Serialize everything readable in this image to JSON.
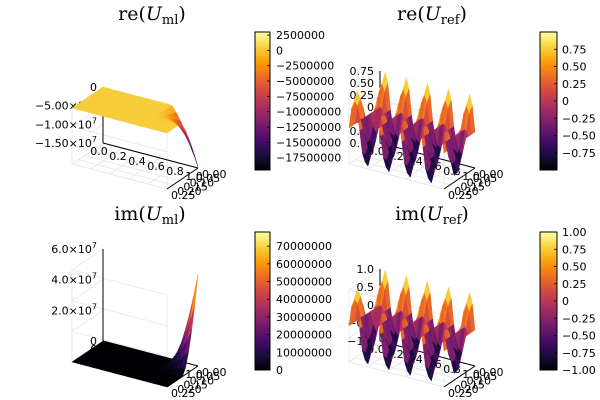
{
  "colors": {
    "colormap": "inferno",
    "stops": [
      "#000004",
      "#1b0c41",
      "#4a0c6b",
      "#781c6d",
      "#a52c60",
      "#cf4446",
      "#ed6925",
      "#fb9b06",
      "#f7d13d",
      "#fcffa4"
    ]
  },
  "chart_data": [
    {
      "type": "surface",
      "title_fn": "re",
      "title_sub": "ml",
      "x_ticks": [
        "0.0",
        "0.2",
        "0.4",
        "0.6",
        "0.8",
        "1.0"
      ],
      "y_ticks": [
        "0.00",
        "0.05",
        "0.10",
        "0.15",
        "0.20",
        "0.25"
      ],
      "z_ticks": [
        {
          "mant": "0",
          "exp": ""
        },
        {
          "mant": "−5.00×10",
          "exp": "6"
        },
        {
          "mant": "−1.00×10",
          "exp": "7"
        },
        {
          "mant": "−1.50×10",
          "exp": "7"
        }
      ],
      "colorbar_ticks": [
        "2500000",
        "0",
        "−2500000",
        "−5000000",
        "−7500000",
        "−10000000",
        "−12500000",
        "−15000000",
        "−17500000"
      ],
      "colorbar_range": [
        -19500000,
        3000000
      ],
      "shape": "plateau_dip"
    },
    {
      "type": "surface",
      "title_fn": "re",
      "title_sub": "ref",
      "x_ticks": [
        "0.0",
        "0.2",
        "0.4",
        "0.6",
        "0.8",
        "1.0"
      ],
      "y_ticks": [
        "0.00",
        "0.05",
        "0.10",
        "0.15",
        "0.20",
        "0.25"
      ],
      "z_ticks": [
        {
          "mant": "0.75",
          "exp": ""
        },
        {
          "mant": "0.50",
          "exp": ""
        },
        {
          "mant": "0.25",
          "exp": ""
        },
        {
          "mant": "0",
          "exp": ""
        },
        {
          "mant": "0.25",
          "exp": ""
        },
        {
          "mant": "0.50",
          "exp": ""
        },
        {
          "mant": "0.75",
          "exp": ""
        }
      ],
      "colorbar_ticks": [
        "0.75",
        "0.50",
        "0.25",
        "0",
        "−0.25",
        "−0.50",
        "−0.75"
      ],
      "colorbar_range": [
        -1.0,
        1.0
      ],
      "shape": "wave"
    },
    {
      "type": "surface",
      "title_fn": "im",
      "title_sub": "ml",
      "x_ticks": [
        "0.0",
        "0.2",
        "0.4",
        "0.6",
        "0.8",
        "1.0"
      ],
      "y_ticks": [
        "0.00",
        "0.05",
        "0.10",
        "0.15",
        "0.20",
        "0.25"
      ],
      "z_ticks": [
        {
          "mant": "6.0×10",
          "exp": "7"
        },
        {
          "mant": "4.0×10",
          "exp": "7"
        },
        {
          "mant": "2.0×10",
          "exp": "7"
        },
        {
          "mant": "0",
          "exp": ""
        }
      ],
      "colorbar_ticks": [
        "70000000",
        "60000000",
        "50000000",
        "40000000",
        "30000000",
        "20000000",
        "10000000",
        "0"
      ],
      "colorbar_range": [
        0,
        78000000
      ],
      "shape": "flat_spike"
    },
    {
      "type": "surface",
      "title_fn": "im",
      "title_sub": "ref",
      "x_ticks": [
        "0.0",
        "0.2",
        "0.4",
        "0.6",
        "0.8",
        "1.0"
      ],
      "y_ticks": [
        "0.00",
        "0.05",
        "0.10",
        "0.15",
        "0.20",
        "0.25"
      ],
      "z_ticks": [
        {
          "mant": "1.0",
          "exp": ""
        },
        {
          "mant": "0.5",
          "exp": ""
        },
        {
          "mant": "0",
          "exp": ""
        },
        {
          "mant": "−0.5",
          "exp": ""
        },
        {
          "mant": "−1.0",
          "exp": ""
        }
      ],
      "colorbar_ticks": [
        "1.00",
        "0.75",
        "0.50",
        "0.25",
        "0",
        "−0.25",
        "−0.50",
        "−0.75",
        "−1.00"
      ],
      "colorbar_range": [
        -1.0,
        1.0
      ],
      "shape": "wave"
    }
  ]
}
